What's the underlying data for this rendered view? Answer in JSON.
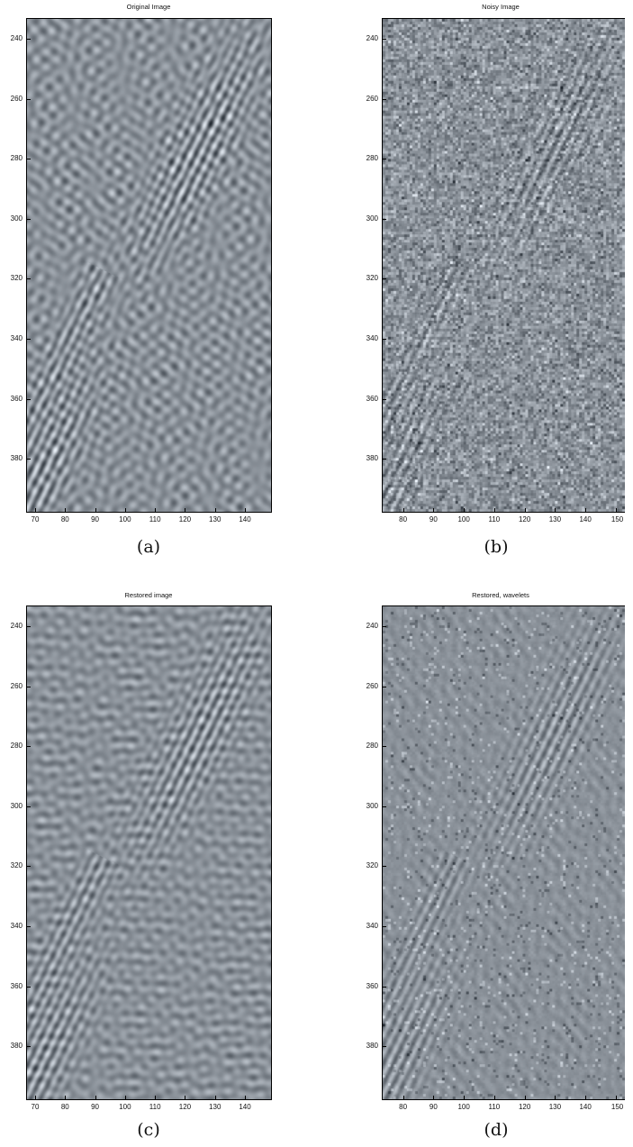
{
  "figure": {
    "panels": [
      {
        "id": "a",
        "title": "Original Image",
        "caption": "(a)",
        "kind": "original",
        "xticks": [
          "70",
          "80",
          "90",
          "100",
          "110",
          "120",
          "130",
          "140"
        ],
        "xvals": [
          70,
          80,
          90,
          100,
          110,
          120,
          130,
          140
        ],
        "xmin": 67,
        "xmax": 149,
        "yticks": [
          "240",
          "260",
          "280",
          "300",
          "320",
          "340",
          "360",
          "380"
        ],
        "yvals": [
          240,
          260,
          280,
          300,
          320,
          340,
          360,
          380
        ],
        "ymin": 233,
        "ymax": 398
      },
      {
        "id": "b",
        "title": "Noisy Image",
        "caption": "(b)",
        "kind": "noisy",
        "xticks": [
          "80",
          "90",
          "100",
          "110",
          "120",
          "130",
          "140",
          "150"
        ],
        "xvals": [
          80,
          90,
          100,
          110,
          120,
          130,
          140,
          150
        ],
        "xmin": 73,
        "xmax": 153,
        "yticks": [
          "240",
          "260",
          "280",
          "300",
          "320",
          "340",
          "360",
          "380"
        ],
        "yvals": [
          240,
          260,
          280,
          300,
          320,
          340,
          360,
          380
        ],
        "ymin": 233,
        "ymax": 398
      },
      {
        "id": "c",
        "title": "Restored image",
        "caption": "(c)",
        "kind": "restored",
        "xticks": [
          "70",
          "80",
          "90",
          "100",
          "110",
          "120",
          "130",
          "140"
        ],
        "xvals": [
          70,
          80,
          90,
          100,
          110,
          120,
          130,
          140
        ],
        "xmin": 67,
        "xmax": 149,
        "yticks": [
          "240",
          "260",
          "280",
          "300",
          "320",
          "340",
          "360",
          "380"
        ],
        "yvals": [
          240,
          260,
          280,
          300,
          320,
          340,
          360,
          380
        ],
        "ymin": 233,
        "ymax": 398
      },
      {
        "id": "d",
        "title": "Restored, wavelets",
        "caption": "(d)",
        "kind": "wavelet",
        "xticks": [
          "80",
          "90",
          "100",
          "110",
          "120",
          "130",
          "140",
          "150"
        ],
        "xvals": [
          80,
          90,
          100,
          110,
          120,
          130,
          140,
          150
        ],
        "xmin": 73,
        "xmax": 153,
        "yticks": [
          "240",
          "260",
          "280",
          "300",
          "320",
          "340",
          "360",
          "380"
        ],
        "yvals": [
          240,
          260,
          280,
          300,
          320,
          340,
          360,
          380
        ],
        "ymin": 233,
        "ymax": 398
      }
    ],
    "colors": {
      "background_gray": "#8a9199",
      "axis": "#000000"
    }
  }
}
